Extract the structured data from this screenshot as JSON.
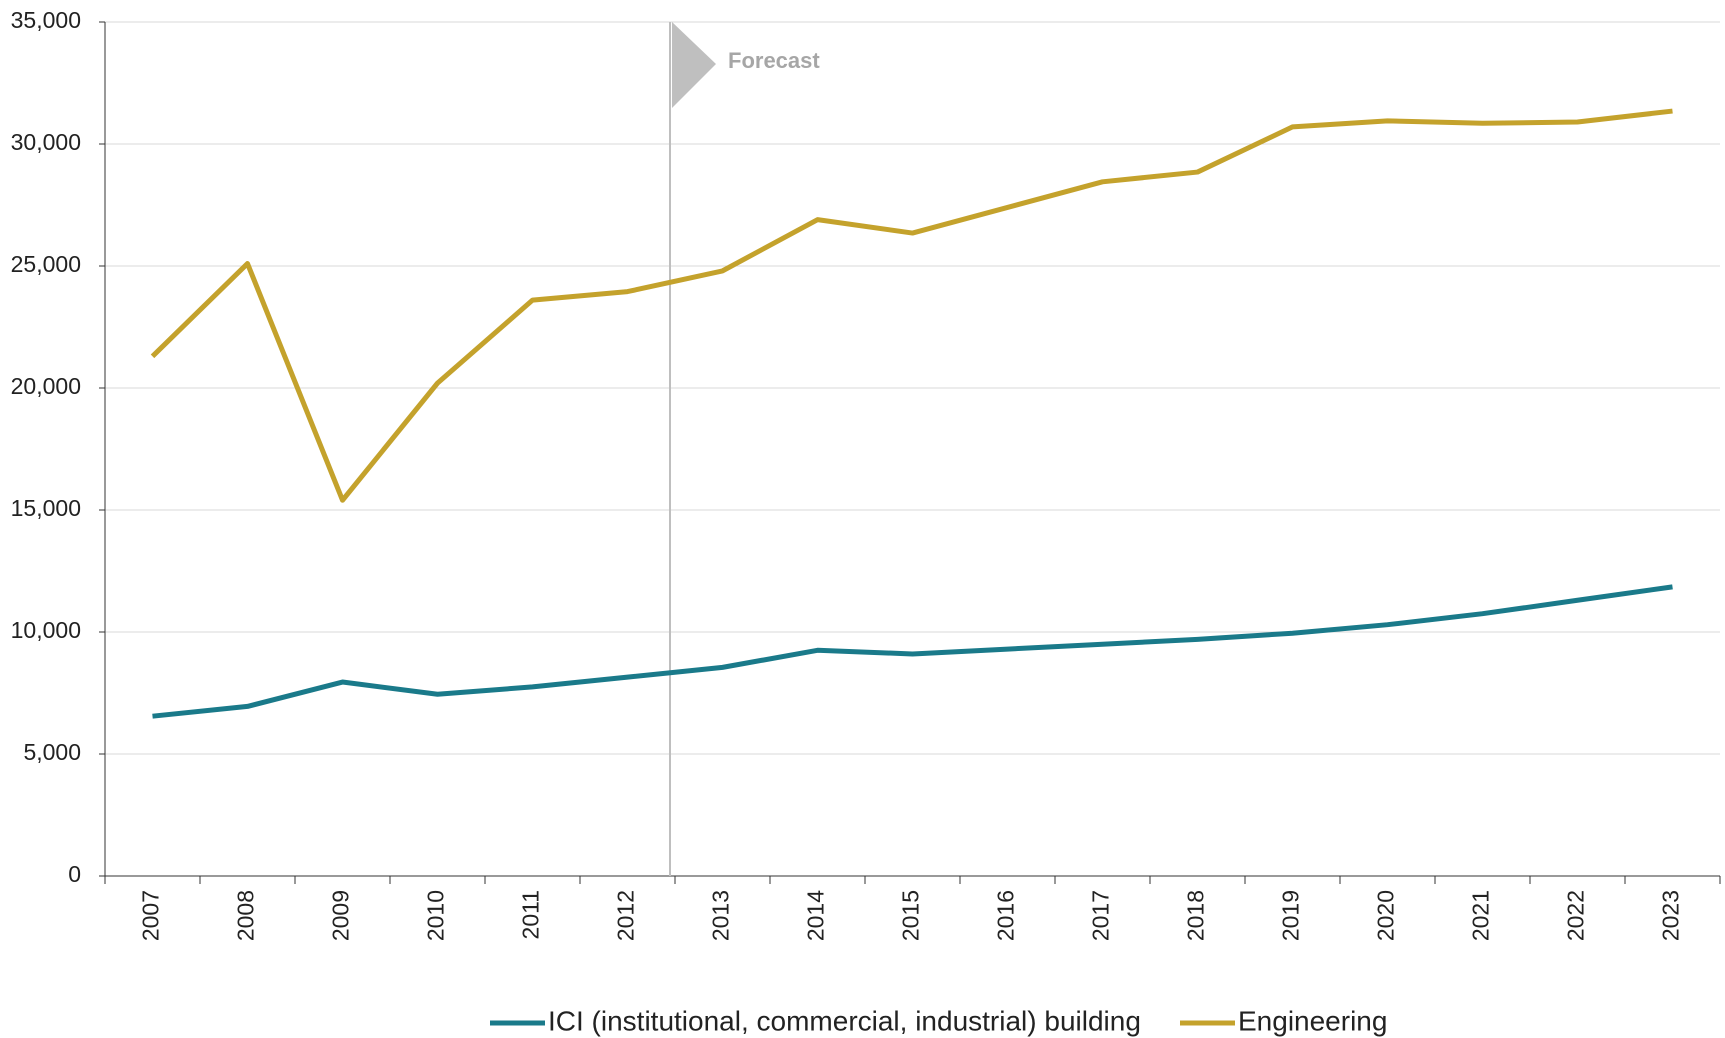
{
  "chart_data": {
    "type": "line",
    "categories": [
      "2007",
      "2008",
      "2009",
      "2010",
      "2011",
      "2012",
      "2013",
      "2014",
      "2015",
      "2016",
      "2017",
      "2018",
      "2019",
      "2020",
      "2021",
      "2022",
      "2023"
    ],
    "series": [
      {
        "name": "ICI (institutional, commercial, industrial) building",
        "color": "#1a7a8a",
        "values": [
          6550,
          6950,
          7950,
          7450,
          7750,
          8150,
          8550,
          9250,
          9100,
          9300,
          9500,
          9700,
          9950,
          10300,
          10750,
          11300,
          11850
        ]
      },
      {
        "name": "Engineering",
        "color": "#c4a22c",
        "values": [
          21300,
          25100,
          15400,
          20200,
          23600,
          23950,
          24800,
          26900,
          26350,
          27400,
          28450,
          28850,
          30700,
          30950,
          30850,
          30900,
          31350
        ]
      }
    ],
    "ylim": [
      0,
      35000
    ],
    "yticks": [
      0,
      {
        "value": 5000,
        "label": "5,000"
      },
      {
        "value": 10000,
        "label": "10,000"
      },
      {
        "value": 15000,
        "label": "15,000"
      },
      {
        "value": 20000,
        "label": "20,000"
      },
      {
        "value": 25000,
        "label": "25,000"
      },
      {
        "value": 30000,
        "label": "30,000"
      },
      {
        "value": 35000,
        "label": "35,000"
      }
    ],
    "grid": true,
    "forecast_label": "Forecast"
  }
}
